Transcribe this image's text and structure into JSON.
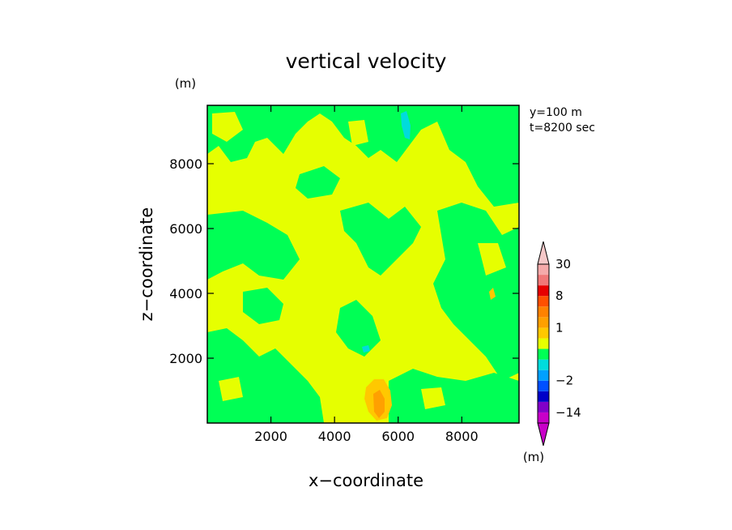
{
  "chart_data": {
    "type": "heatmap",
    "title": "vertical velocity",
    "xlabel": "x−coordinate",
    "ylabel": "z−coordinate",
    "x_unit": "(m)",
    "y_unit": "(m)",
    "annotation_y": "y=100  m",
    "annotation_t": "t=8200 sec",
    "xlim": [
      0,
      9800
    ],
    "ylim": [
      0,
      9800
    ],
    "x_ticks": [
      2000,
      4000,
      6000,
      8000
    ],
    "y_ticks": [
      2000,
      4000,
      6000,
      8000
    ],
    "colorbar": {
      "unit": "(m)",
      "labels": [
        {
          "text": "30",
          "level": 30
        },
        {
          "text": "8",
          "level": 8
        },
        {
          "text": "1",
          "level": 1
        },
        {
          "text": "−2",
          "level": -2
        },
        {
          "text": "−14",
          "level": -14
        }
      ],
      "bins": [
        {
          "from": -30,
          "to": -14,
          "color": "#c800c8"
        },
        {
          "from": -14,
          "to": -8,
          "color": "#8200c8"
        },
        {
          "from": -8,
          "to": -4,
          "color": "#0000c8"
        },
        {
          "from": -4,
          "to": -2,
          "color": "#0050ff"
        },
        {
          "from": -2,
          "to": -1,
          "color": "#00a0ff"
        },
        {
          "from": -1,
          "to": -0.5,
          "color": "#00dcdc"
        },
        {
          "from": -0.5,
          "to": 0,
          "color": "#00ff55"
        },
        {
          "from": 0,
          "to": 0.5,
          "color": "#e6ff00"
        },
        {
          "from": 0.5,
          "to": 1,
          "color": "#ffc800"
        },
        {
          "from": 1,
          "to": 2,
          "color": "#ffa000"
        },
        {
          "from": 2,
          "to": 4,
          "color": "#ff8200"
        },
        {
          "from": 4,
          "to": 8,
          "color": "#ff5000"
        },
        {
          "from": 8,
          "to": 14,
          "color": "#e60000"
        },
        {
          "from": 14,
          "to": 20,
          "color": "#f07878"
        },
        {
          "from": 20,
          "to": 30,
          "color": "#f5aaaa"
        }
      ],
      "under_color": "#c800c8",
      "over_color": "#f5c8c8"
    },
    "colors": {
      "background_positive": "#e6ff00",
      "negative_fill": "#00ff55",
      "cyan": "#00dcdc",
      "orange_light": "#ffc800",
      "orange": "#ffa000"
    }
  }
}
